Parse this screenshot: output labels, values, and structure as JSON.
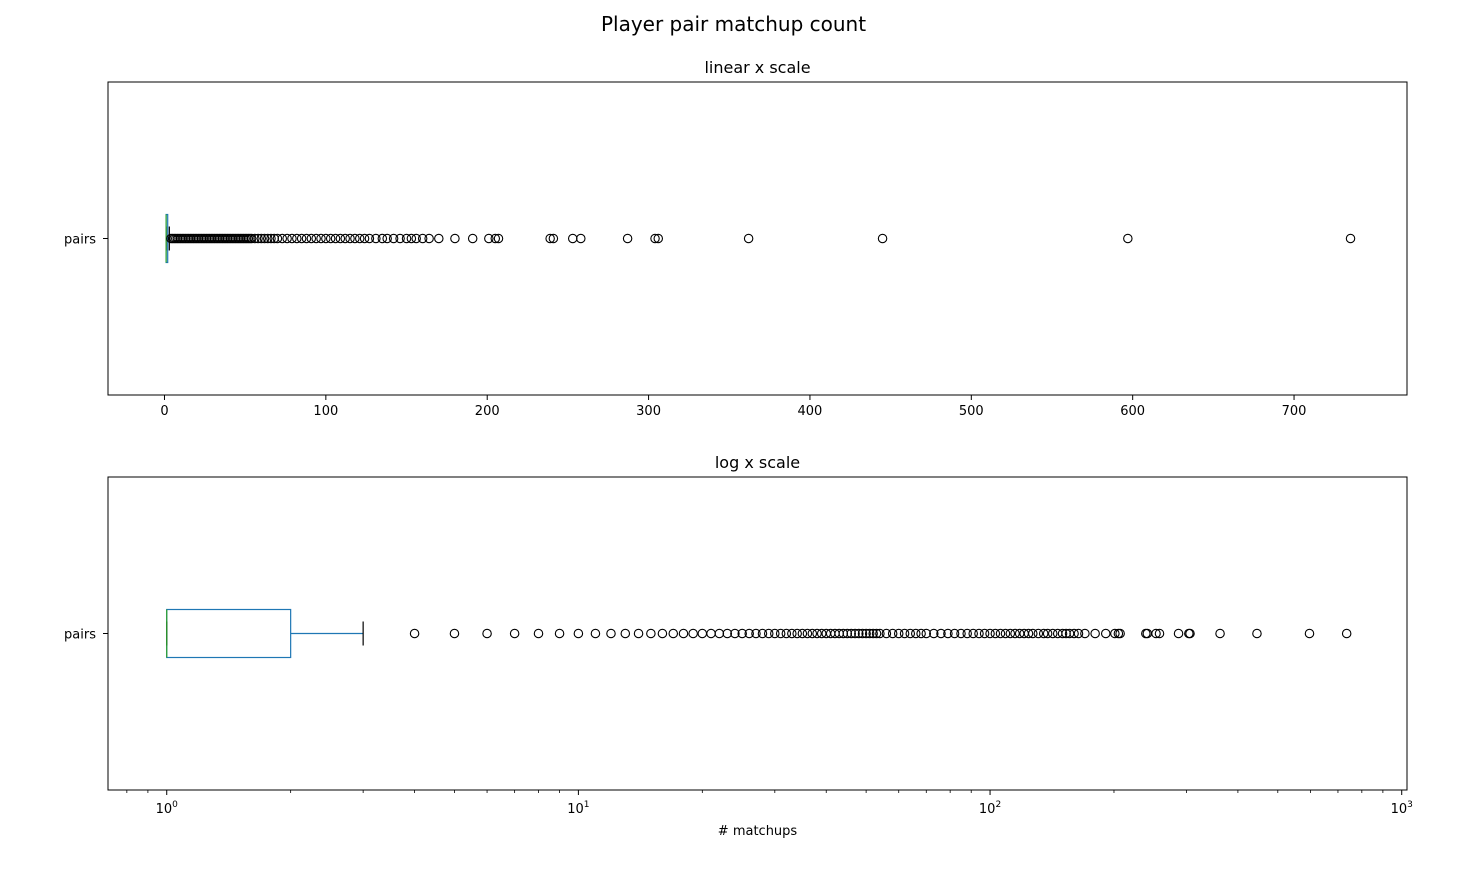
{
  "figure_title": "Player pair matchup count",
  "chart_data": [
    {
      "type": "box",
      "title": "linear x scale",
      "xscale": "linear",
      "xlim": [
        -35,
        770
      ],
      "xticks": [
        0,
        100,
        200,
        300,
        400,
        500,
        600,
        700
      ],
      "xtick_labels": [
        "0",
        "100",
        "200",
        "300",
        "400",
        "500",
        "600",
        "700"
      ],
      "xlabel": "",
      "category": "pairs",
      "box": {
        "min": 1,
        "q1": 1,
        "median": 1,
        "q3": 2,
        "whisker_high": 3
      },
      "outliers": [
        4,
        5,
        6,
        7,
        8,
        9,
        10,
        11,
        12,
        13,
        14,
        15,
        16,
        17,
        18,
        19,
        20,
        21,
        22,
        23,
        24,
        25,
        26,
        27,
        28,
        29,
        30,
        31,
        32,
        33,
        34,
        35,
        36,
        37,
        38,
        39,
        40,
        41,
        42,
        43,
        44,
        45,
        46,
        47,
        48,
        49,
        50,
        51,
        52,
        53,
        54,
        56,
        58,
        60,
        62,
        64,
        66,
        68,
        70,
        73,
        76,
        79,
        82,
        85,
        88,
        91,
        94,
        97,
        100,
        103,
        106,
        109,
        112,
        115,
        118,
        121,
        124,
        127,
        131,
        135,
        138,
        142,
        146,
        150,
        153,
        156,
        160,
        164,
        170,
        180,
        191,
        201,
        205,
        207,
        239,
        241,
        253,
        258,
        287,
        304,
        306,
        362,
        445,
        597,
        735
      ]
    },
    {
      "type": "box",
      "title": "log x scale",
      "xscale": "log",
      "xlim": [
        0.72,
        1030
      ],
      "xticks": [
        1,
        10,
        100,
        1000
      ],
      "xtick_labels": [
        "10^0",
        "10^1",
        "10^2",
        "10^3"
      ],
      "xlabel": "# matchups",
      "category": "pairs",
      "box": {
        "min": 1,
        "q1": 1,
        "median": 1,
        "q3": 2,
        "whisker_high": 3
      },
      "outliers": [
        4,
        5,
        6,
        7,
        8,
        9,
        10,
        11,
        12,
        13,
        14,
        15,
        16,
        17,
        18,
        19,
        20,
        21,
        22,
        23,
        24,
        25,
        26,
        27,
        28,
        29,
        30,
        31,
        32,
        33,
        34,
        35,
        36,
        37,
        38,
        39,
        40,
        41,
        42,
        43,
        44,
        45,
        46,
        47,
        48,
        49,
        50,
        51,
        52,
        53,
        54,
        56,
        58,
        60,
        62,
        64,
        66,
        68,
        70,
        73,
        76,
        79,
        82,
        85,
        88,
        91,
        94,
        97,
        100,
        103,
        106,
        109,
        112,
        115,
        118,
        121,
        124,
        127,
        131,
        135,
        138,
        142,
        146,
        150,
        153,
        156,
        160,
        164,
        170,
        180,
        191,
        201,
        205,
        207,
        239,
        241,
        253,
        258,
        287,
        304,
        306,
        362,
        445,
        597,
        735
      ]
    }
  ],
  "colors": {
    "box": "#1f77b4",
    "median": "#2ca02c",
    "whisker_cap": "#000000",
    "outlier": "#000000"
  }
}
